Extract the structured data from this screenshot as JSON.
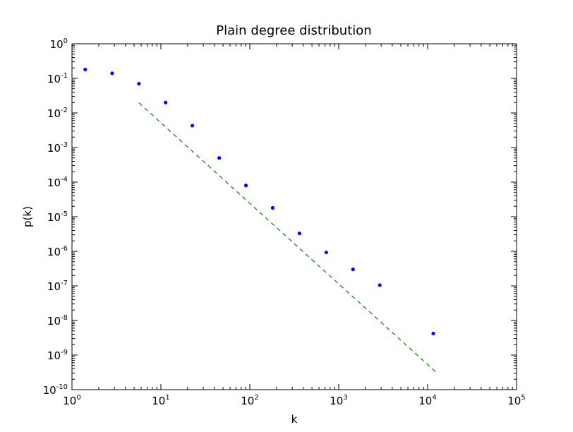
{
  "chart_data": {
    "type": "scatter",
    "title": "Plain degree distribution",
    "xlabel": "k",
    "ylabel": "p(k)",
    "xscale": "log",
    "yscale": "log",
    "xlim": [
      1,
      100000
    ],
    "ylim": [
      1e-10,
      1
    ],
    "grid": false,
    "legend": "none",
    "x_ticks": [
      {
        "base": "10",
        "exp": "0",
        "value": 1
      },
      {
        "base": "10",
        "exp": "1",
        "value": 10
      },
      {
        "base": "10",
        "exp": "2",
        "value": 100
      },
      {
        "base": "10",
        "exp": "3",
        "value": 1000
      },
      {
        "base": "10",
        "exp": "4",
        "value": 10000
      },
      {
        "base": "10",
        "exp": "5",
        "value": 100000
      }
    ],
    "y_ticks": [
      {
        "base": "10",
        "exp": "0",
        "value": 1
      },
      {
        "base": "10",
        "exp": "-1",
        "value": 0.1
      },
      {
        "base": "10",
        "exp": "-2",
        "value": 0.01
      },
      {
        "base": "10",
        "exp": "-3",
        "value": 0.001
      },
      {
        "base": "10",
        "exp": "-4",
        "value": 0.0001
      },
      {
        "base": "10",
        "exp": "-5",
        "value": 1e-05
      },
      {
        "base": "10",
        "exp": "-6",
        "value": 1e-06
      },
      {
        "base": "10",
        "exp": "-7",
        "value": 1e-07
      },
      {
        "base": "10",
        "exp": "-8",
        "value": 1e-08
      },
      {
        "base": "10",
        "exp": "-9",
        "value": 1e-09
      },
      {
        "base": "10",
        "exp": "-10",
        "value": 1e-10
      }
    ],
    "series": [
      {
        "type": "scatter",
        "color": "#0000ff",
        "x": [
          1.41,
          2.83,
          5.66,
          11.3,
          22.6,
          45.3,
          90.5,
          181,
          362,
          724,
          1448,
          2896,
          11585
        ],
        "y": [
          0.18,
          0.14,
          0.07,
          0.02,
          0.0043,
          0.0005,
          8e-05,
          1.8e-05,
          3.3e-06,
          9.3e-07,
          3e-07,
          1.05e-07,
          4.2e-09
        ]
      },
      {
        "type": "line",
        "style": "dashed",
        "color": "#008000",
        "x": [
          5.66,
          12800
        ],
        "y": [
          0.0196,
          3e-10
        ]
      }
    ]
  }
}
